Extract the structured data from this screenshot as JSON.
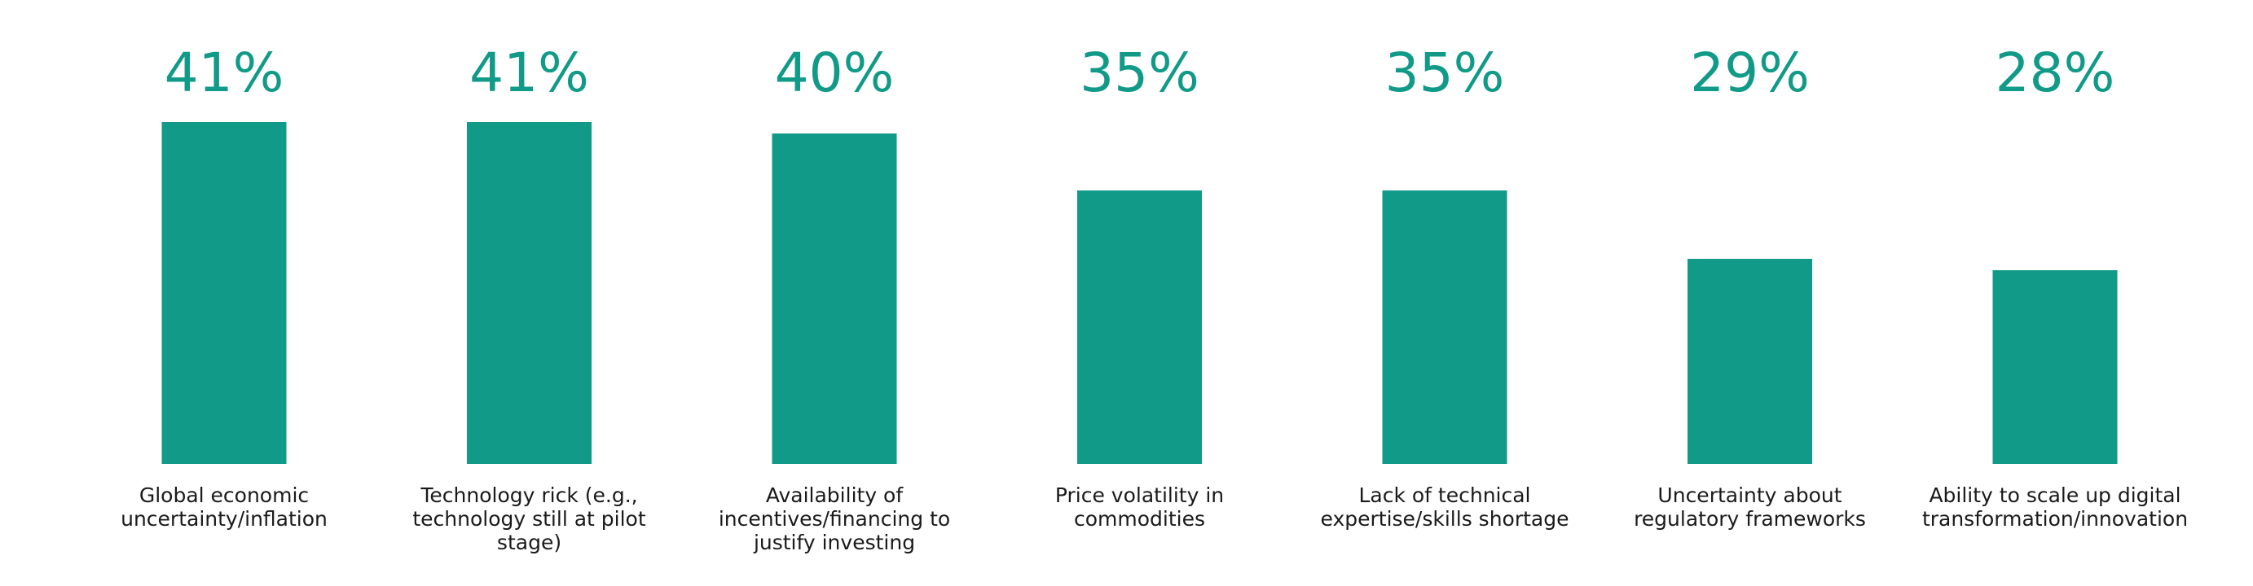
{
  "chart_data": {
    "type": "bar",
    "categories": [
      [
        "Global economic",
        "uncertainty/inflation"
      ],
      [
        "Technology rick (e.g.,",
        "technology still at pilot",
        "stage)"
      ],
      [
        "Availability of",
        "incentives/financing to",
        "justify investing"
      ],
      [
        "Price volatility in",
        "commodities"
      ],
      [
        "Lack of technical",
        "expertise/skills shortage"
      ],
      [
        "Uncertainty about",
        "regulatory frameworks"
      ],
      [
        "Ability to scale up digital",
        "transformation/innovation"
      ]
    ],
    "values": [
      41,
      41,
      40,
      35,
      35,
      29,
      28
    ],
    "value_labels": [
      "41%",
      "41%",
      "40%",
      "35%",
      "35%",
      "29%",
      "28%"
    ],
    "color": "#109a87",
    "ylim": [
      11,
      41
    ]
  }
}
